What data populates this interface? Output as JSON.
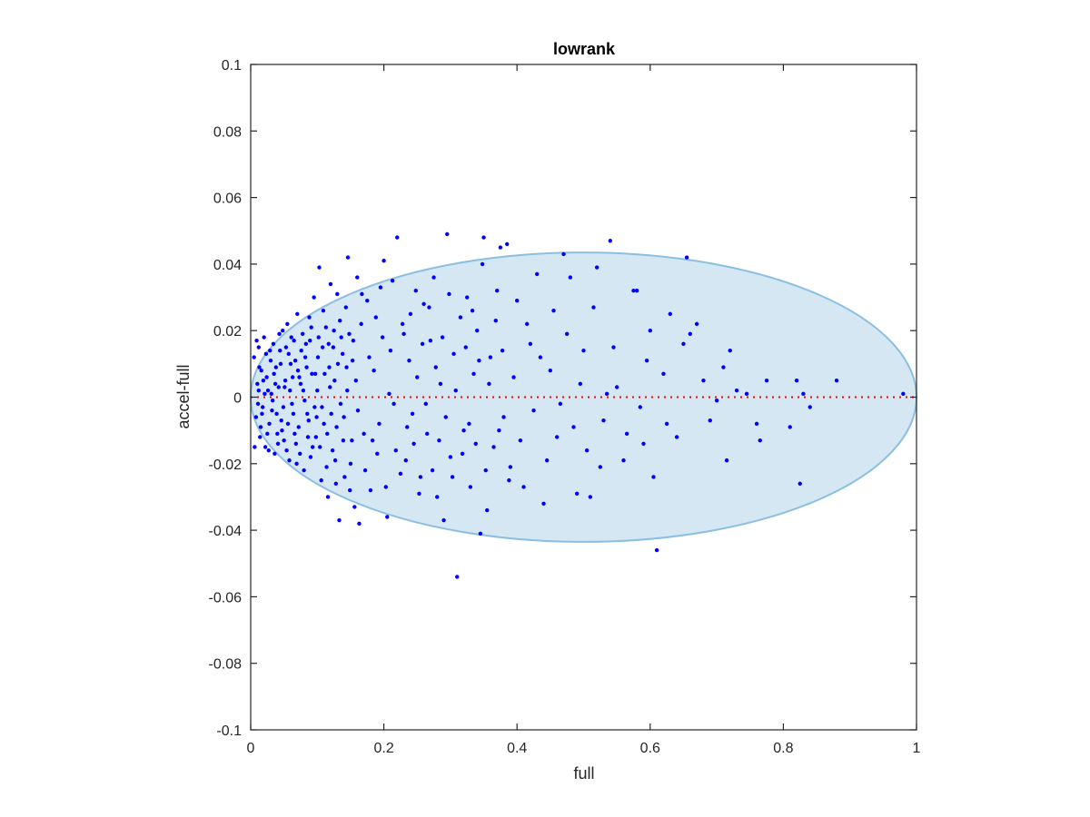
{
  "chart_data": {
    "type": "scatter",
    "title": "lowrank",
    "xlabel": "full",
    "ylabel": "accel-full",
    "xlim": [
      0,
      1
    ],
    "ylim": [
      -0.1,
      0.1
    ],
    "xticks": [
      0,
      0.2,
      0.4,
      0.6,
      0.8,
      1
    ],
    "xtick_labels": [
      "0",
      "0.2",
      "0.4",
      "0.6",
      "0.8",
      "1"
    ],
    "yticks": [
      -0.1,
      -0.08,
      -0.06,
      -0.04,
      -0.02,
      0,
      0.02,
      0.04,
      0.06,
      0.08,
      0.1
    ],
    "ytick_labels": [
      "-0.1",
      "-0.08",
      "-0.06",
      "-0.04",
      "-0.02",
      "0",
      "0.02",
      "0.04",
      "0.06",
      "0.08",
      "0.1"
    ],
    "grid": false,
    "colors": {
      "points": "#0000ff",
      "ellipse_fill": "#d6e7f4",
      "ellipse_stroke": "#8bbfe0",
      "zero_line": "#ff0000",
      "axes": "#262626"
    },
    "reference_line": {
      "y": 0,
      "style": "dotted"
    },
    "ellipse": {
      "cx": 0.5,
      "cy": 0,
      "rx": 0.5,
      "ry": 0.0435
    },
    "series": [
      {
        "points": [
          [
            0.005,
            0.012
          ],
          [
            0.008,
            -0.006
          ],
          [
            0.01,
            0.004
          ],
          [
            0.012,
            0.015
          ],
          [
            0.014,
            -0.012
          ],
          [
            0.016,
            0.008
          ],
          [
            0.018,
            -0.003
          ],
          [
            0.02,
            0.018
          ],
          [
            0.022,
            -0.015
          ],
          [
            0.024,
            0.006
          ],
          [
            0.026,
            0.002
          ],
          [
            0.028,
            -0.008
          ],
          [
            0.03,
            0.011
          ],
          [
            0.032,
            -0.004
          ],
          [
            0.034,
            0.016
          ],
          [
            0.036,
            -0.017
          ],
          [
            0.038,
            0.009
          ],
          [
            0.04,
            -0.011
          ],
          [
            0.042,
            0.003
          ],
          [
            0.044,
            0.014
          ],
          [
            0.046,
            -0.007
          ],
          [
            0.048,
            0.02
          ],
          [
            0.05,
            -0.013
          ],
          [
            0.052,
            0.005
          ],
          [
            0.055,
            0.022
          ],
          [
            0.058,
            -0.019
          ],
          [
            0.06,
            0.01
          ],
          [
            0.062,
            -0.002
          ],
          [
            0.065,
            0.017
          ],
          [
            0.068,
            -0.014
          ],
          [
            0.07,
            0.025
          ],
          [
            0.072,
            -0.009
          ],
          [
            0.075,
            0.004
          ],
          [
            0.078,
            0.019
          ],
          [
            0.08,
            -0.022
          ],
          [
            0.082,
            0.012
          ],
          [
            0.085,
            -0.005
          ],
          [
            0.088,
            0.024
          ],
          [
            0.09,
            -0.018
          ],
          [
            0.092,
            0.007
          ],
          [
            0.095,
            0.03
          ],
          [
            0.098,
            -0.012
          ],
          [
            0.1,
            0.002
          ],
          [
            0.103,
            0.039
          ],
          [
            0.106,
            -0.025
          ],
          [
            0.108,
            0.015
          ],
          [
            0.11,
            -0.008
          ],
          [
            0.113,
            0.021
          ],
          [
            0.116,
            -0.03
          ],
          [
            0.118,
            0.009
          ],
          [
            0.12,
            0.034
          ],
          [
            0.123,
            -0.016
          ],
          [
            0.126,
            0.005
          ],
          [
            0.128,
            -0.026
          ],
          [
            0.13,
            0.031
          ],
          [
            0.133,
            -0.037
          ],
          [
            0.136,
            0.018
          ],
          [
            0.14,
            -0.006
          ],
          [
            0.143,
            0.027
          ],
          [
            0.146,
            0.042
          ],
          [
            0.15,
            -0.02
          ],
          [
            0.153,
            0.011
          ],
          [
            0.156,
            -0.033
          ],
          [
            0.16,
            0.036
          ],
          [
            0.163,
            -0.038
          ],
          [
            0.166,
            0.022
          ],
          [
            0.17,
            -0.011
          ],
          [
            0.175,
            0.029
          ],
          [
            0.18,
            -0.028
          ],
          [
            0.185,
            0.008
          ],
          [
            0.19,
            -0.017
          ],
          [
            0.195,
            0.033
          ],
          [
            0.2,
            0.041
          ],
          [
            0.205,
            -0.036
          ],
          [
            0.21,
            0.014
          ],
          [
            0.215,
            -0.002
          ],
          [
            0.22,
            0.048
          ],
          [
            0.225,
            -0.023
          ],
          [
            0.23,
            0.019
          ],
          [
            0.235,
            -0.009
          ],
          [
            0.24,
            0.025
          ],
          [
            0.245,
            -0.014
          ],
          [
            0.25,
            0.006
          ],
          [
            0.255,
            -0.024
          ],
          [
            0.26,
            0.028
          ],
          [
            0.265,
            -0.011
          ],
          [
            0.27,
            0.017
          ],
          [
            0.275,
            0.036
          ],
          [
            0.28,
            -0.03
          ],
          [
            0.285,
            0.004
          ],
          [
            0.29,
            -0.037
          ],
          [
            0.295,
            0.049
          ],
          [
            0.3,
            -0.018
          ],
          [
            0.305,
            0.013
          ],
          [
            0.31,
            -0.054
          ],
          [
            0.315,
            0.024
          ],
          [
            0.32,
            -0.01
          ],
          [
            0.325,
            0.03
          ],
          [
            0.33,
            -0.027
          ],
          [
            0.335,
            0.007
          ],
          [
            0.34,
            0.02
          ],
          [
            0.345,
            -0.041
          ],
          [
            0.35,
            0.048
          ],
          [
            0.355,
            -0.034
          ],
          [
            0.36,
            0.012
          ],
          [
            0.365,
            -0.015
          ],
          [
            0.37,
            0.032
          ],
          [
            0.375,
            0.045
          ],
          [
            0.38,
            -0.006
          ],
          [
            0.385,
            0.046
          ],
          [
            0.39,
            -0.021
          ],
          [
            0.4,
            0.029
          ],
          [
            0.41,
            -0.027
          ],
          [
            0.42,
            0.016
          ],
          [
            0.43,
            0.037
          ],
          [
            0.44,
            -0.032
          ],
          [
            0.45,
            0.008
          ],
          [
            0.46,
            -0.012
          ],
          [
            0.47,
            0.043
          ],
          [
            0.48,
            0.036
          ],
          [
            0.49,
            -0.029
          ],
          [
            0.5,
            0.014
          ],
          [
            0.51,
            -0.03
          ],
          [
            0.52,
            0.039
          ],
          [
            0.53,
            -0.007
          ],
          [
            0.54,
            0.047
          ],
          [
            0.55,
            0.003
          ],
          [
            0.56,
            -0.019
          ],
          [
            0.58,
            0.032
          ],
          [
            0.59,
            -0.014
          ],
          [
            0.6,
            0.02
          ],
          [
            0.605,
            -0.024
          ],
          [
            0.61,
            -0.046
          ],
          [
            0.62,
            0.007
          ],
          [
            0.63,
            0.025
          ],
          [
            0.655,
            0.042
          ],
          [
            0.66,
            0.019
          ],
          [
            0.67,
            0.022
          ],
          [
            0.68,
            0.005
          ],
          [
            0.69,
            -0.007
          ],
          [
            0.7,
            -0.001
          ],
          [
            0.71,
            0.009
          ],
          [
            0.715,
            -0.019
          ],
          [
            0.72,
            0.014
          ],
          [
            0.73,
            0.002
          ],
          [
            0.745,
            0.001
          ],
          [
            0.76,
            -0.008
          ],
          [
            0.765,
            -0.013
          ],
          [
            0.775,
            0.005
          ],
          [
            0.81,
            -0.009
          ],
          [
            0.82,
            0.005
          ],
          [
            0.825,
            -0.026
          ],
          [
            0.83,
            0.001
          ],
          [
            0.84,
            -0.003
          ],
          [
            0.88,
            0.005
          ],
          [
            0.98,
            0.001
          ],
          [
            0.012,
            0.002
          ],
          [
            0.015,
            -0.009
          ],
          [
            0.019,
            0.005
          ],
          [
            0.023,
            0.013
          ],
          [
            0.027,
            -0.016
          ],
          [
            0.031,
            0.001
          ],
          [
            0.035,
            0.007
          ],
          [
            0.039,
            -0.005
          ],
          [
            0.043,
            0.019
          ],
          [
            0.047,
            -0.01
          ],
          [
            0.051,
            0.003
          ],
          [
            0.054,
            -0.016
          ],
          [
            0.057,
            0.013
          ],
          [
            0.063,
            0.006
          ],
          [
            0.066,
            -0.011
          ],
          [
            0.071,
            0.008
          ],
          [
            0.074,
            -0.017
          ],
          [
            0.079,
            0.002
          ],
          [
            0.083,
            0.016
          ],
          [
            0.087,
            -0.007
          ],
          [
            0.091,
            0.021
          ],
          [
            0.096,
            -0.003
          ],
          [
            0.101,
            0.012
          ],
          [
            0.104,
            -0.015
          ],
          [
            0.109,
            0.026
          ],
          [
            0.114,
            -0.021
          ],
          [
            0.119,
            0.003
          ],
          [
            0.124,
            0.015
          ],
          [
            0.129,
            -0.009
          ],
          [
            0.134,
            0.023
          ],
          [
            0.139,
            -0.013
          ],
          [
            0.144,
            0.009
          ],
          [
            0.149,
            -0.028
          ],
          [
            0.154,
            0.017
          ],
          [
            0.161,
            -0.004
          ],
          [
            0.167,
            0.031
          ],
          [
            0.172,
            -0.022
          ],
          [
            0.178,
            0.012
          ],
          [
            0.183,
            -0.013
          ],
          [
            0.188,
            0.024
          ],
          [
            0.193,
            -0.008
          ],
          [
            0.198,
            0.018
          ],
          [
            0.203,
            -0.027
          ],
          [
            0.208,
            0.001
          ],
          [
            0.213,
            0.035
          ],
          [
            0.218,
            -0.016
          ],
          [
            0.228,
            0.022
          ],
          [
            0.233,
            -0.019
          ],
          [
            0.238,
            0.011
          ],
          [
            0.243,
            -0.005
          ],
          [
            0.248,
            0.032
          ],
          [
            0.253,
            -0.029
          ],
          [
            0.258,
            0.016
          ],
          [
            0.263,
            -0.002
          ],
          [
            0.268,
            0.027
          ],
          [
            0.273,
            -0.022
          ],
          [
            0.278,
            0.009
          ],
          [
            0.283,
            -0.013
          ],
          [
            0.288,
            0.018
          ],
          [
            0.293,
            -0.006
          ],
          [
            0.298,
            0.031
          ],
          [
            0.303,
            -0.024
          ],
          [
            0.308,
            0.002
          ],
          [
            0.318,
            -0.017
          ],
          [
            0.323,
            0.015
          ],
          [
            0.328,
            -0.008
          ],
          [
            0.333,
            0.026
          ],
          [
            0.338,
            -0.014
          ],
          [
            0.343,
            0.011
          ],
          [
            0.348,
            0.04
          ],
          [
            0.353,
            -0.022
          ],
          [
            0.358,
            0.004
          ],
          [
            0.368,
            0.023
          ],
          [
            0.373,
            -0.01
          ],
          [
            0.378,
            0.014
          ],
          [
            0.388,
            -0.025
          ],
          [
            0.395,
            0.006
          ],
          [
            0.405,
            -0.013
          ],
          [
            0.415,
            0.022
          ],
          [
            0.425,
            -0.004
          ],
          [
            0.435,
            0.012
          ],
          [
            0.445,
            -0.019
          ],
          [
            0.455,
            0.026
          ],
          [
            0.465,
            -0.002
          ],
          [
            0.475,
            0.019
          ],
          [
            0.485,
            -0.009
          ],
          [
            0.495,
            0.004
          ],
          [
            0.505,
            -0.016
          ],
          [
            0.515,
            0.027
          ],
          [
            0.525,
            -0.021
          ],
          [
            0.535,
            0.001
          ],
          [
            0.545,
            0.015
          ],
          [
            0.565,
            -0.011
          ],
          [
            0.575,
            0.032
          ],
          [
            0.585,
            -0.003
          ],
          [
            0.595,
            0.011
          ],
          [
            0.625,
            -0.008
          ],
          [
            0.64,
            -0.012
          ],
          [
            0.65,
            0.016
          ],
          [
            0.006,
            -0.015
          ],
          [
            0.009,
            0.017
          ],
          [
            0.011,
            -0.002
          ],
          [
            0.013,
            0.009
          ],
          [
            0.017,
            -0.005
          ],
          [
            0.021,
            0.001
          ],
          [
            0.025,
            -0.011
          ],
          [
            0.029,
            0.014
          ],
          [
            0.033,
            -0.001
          ],
          [
            0.037,
            0.004
          ],
          [
            0.041,
            -0.014
          ],
          [
            0.045,
            0.01
          ],
          [
            0.049,
            -0.003
          ],
          [
            0.053,
            0.015
          ],
          [
            0.056,
            -0.008
          ],
          [
            0.059,
            0.002
          ],
          [
            0.061,
            0.018
          ],
          [
            0.064,
            -0.005
          ],
          [
            0.067,
            0.011
          ],
          [
            0.069,
            -0.02
          ],
          [
            0.073,
            0.006
          ],
          [
            0.076,
            0.014
          ],
          [
            0.081,
            -0.001
          ],
          [
            0.084,
            0.009
          ],
          [
            0.086,
            -0.012
          ],
          [
            0.089,
            0.017
          ],
          [
            0.093,
            -0.015
          ],
          [
            0.097,
            0.007
          ],
          [
            0.099,
            -0.006
          ],
          [
            0.102,
            0.018
          ],
          [
            0.107,
            -0.003
          ],
          [
            0.111,
            0.007
          ],
          [
            0.115,
            -0.011
          ],
          [
            0.117,
            0.016
          ],
          [
            0.121,
            -0.005
          ],
          [
            0.125,
            0.02
          ],
          [
            0.127,
            -0.019
          ],
          [
            0.131,
            0.01
          ],
          [
            0.135,
            -0.002
          ],
          [
            0.138,
            0.013
          ],
          [
            0.141,
            -0.024
          ],
          [
            0.145,
            0.002
          ],
          [
            0.148,
            0.019
          ],
          [
            0.152,
            -0.013
          ],
          [
            0.158,
            0.005
          ]
        ]
      }
    ]
  }
}
